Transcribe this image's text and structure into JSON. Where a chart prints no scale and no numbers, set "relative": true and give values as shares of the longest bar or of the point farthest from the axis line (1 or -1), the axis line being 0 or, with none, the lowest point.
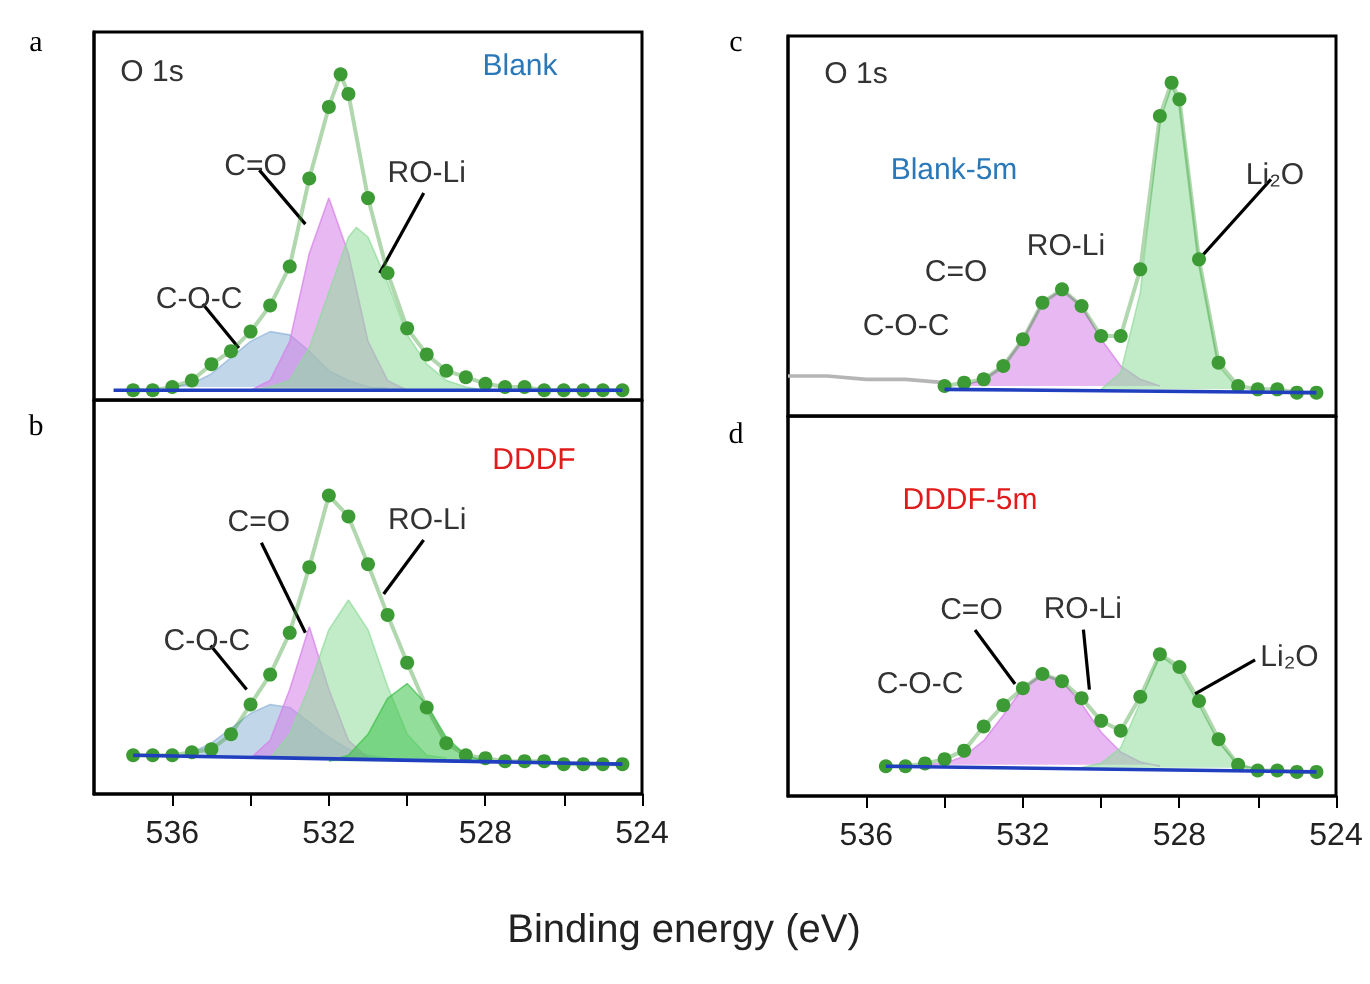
{
  "chart_data": [
    {
      "type": "line",
      "title": "Blank",
      "xlim": [
        538,
        524
      ],
      "tick_labels": false,
      "relative": true,
      "annotations": [
        "a",
        "O 1s",
        {
          "text": "C-O-C",
          "x": 534.3,
          "y": 0.16
        },
        {
          "text": "C=O",
          "x": 532.6,
          "y": 0.54
        },
        {
          "text": "RO-Li",
          "x": 530.7,
          "y": 0.39
        }
      ],
      "series": [
        {
          "type": "area",
          "color": "#8fb4d9",
          "x": [
            536,
            535.5,
            535,
            534.5,
            534,
            533.5,
            533,
            532.5,
            532,
            531.5,
            531,
            530.5
          ],
          "values": [
            0.04,
            0.05,
            0.08,
            0.13,
            0.18,
            0.21,
            0.2,
            0.15,
            0.09,
            0.06,
            0.04,
            0.03
          ]
        },
        {
          "type": "area",
          "color": "#d67ee8",
          "x": [
            534,
            533.5,
            533,
            532.5,
            532,
            531.5,
            531,
            530.5,
            530
          ],
          "values": [
            0.03,
            0.06,
            0.18,
            0.45,
            0.62,
            0.45,
            0.18,
            0.06,
            0.03
          ]
        },
        {
          "type": "area",
          "color": "#8fdc9a",
          "x": [
            534,
            533.5,
            533,
            532.5,
            532,
            531.5,
            531.3,
            531,
            530.5,
            530,
            529.5,
            529,
            528.5,
            528
          ],
          "values": [
            0.03,
            0.04,
            0.06,
            0.16,
            0.33,
            0.5,
            0.53,
            0.5,
            0.36,
            0.2,
            0.11,
            0.06,
            0.04,
            0.03
          ]
        },
        {
          "type": "line",
          "color": "#3d9b35",
          "marker": "circle",
          "x": [
            537,
            536.5,
            536,
            535.5,
            535,
            534.5,
            534,
            533.5,
            533,
            532.5,
            532,
            531.7,
            531.5,
            531,
            530.5,
            530,
            529.5,
            529,
            528.5,
            528,
            527.5,
            527,
            526.5,
            526,
            525.5,
            525,
            524.5
          ],
          "values": [
            0.03,
            0.03,
            0.04,
            0.06,
            0.11,
            0.15,
            0.21,
            0.29,
            0.41,
            0.68,
            0.9,
            1.0,
            0.94,
            0.62,
            0.39,
            0.22,
            0.14,
            0.09,
            0.07,
            0.05,
            0.04,
            0.04,
            0.03,
            0.03,
            0.03,
            0.03,
            0.03
          ]
        },
        {
          "type": "line",
          "color": "#1f3fbf",
          "x": [
            537.5,
            524.5
          ],
          "values": [
            0.03,
            0.03
          ]
        }
      ]
    },
    {
      "type": "line",
      "title": "DDDF",
      "xlim": [
        538,
        524
      ],
      "xticks": [
        536,
        {
          "value": 534,
          "label": null
        },
        532,
        {
          "value": 530,
          "label": null
        },
        528,
        {
          "value": 526,
          "label": null
        },
        524
      ],
      "tick_labels": "x",
      "relative": true,
      "annotations": [
        "b",
        {
          "text": "C-O-C",
          "x": 534.1,
          "y": 0.35
        },
        {
          "text": "C=O",
          "x": 532.6,
          "y": 0.54
        },
        {
          "text": "RO-Li",
          "x": 530.6,
          "y": 0.67
        }
      ],
      "series": [
        {
          "type": "area",
          "color": "#8fb4d9",
          "x": [
            536,
            535.5,
            535,
            534.5,
            534,
            533.5,
            533,
            532.5,
            532,
            531.5,
            531,
            530.5
          ],
          "values": [
            0.12,
            0.14,
            0.17,
            0.22,
            0.27,
            0.3,
            0.29,
            0.24,
            0.19,
            0.15,
            0.13,
            0.12
          ]
        },
        {
          "type": "area",
          "color": "#d67ee8",
          "x": [
            534,
            533.5,
            533,
            532.5,
            532,
            531.5,
            531
          ],
          "values": [
            0.12,
            0.18,
            0.35,
            0.56,
            0.35,
            0.18,
            0.12
          ]
        },
        {
          "type": "area",
          "color": "#8fdc9a",
          "x": [
            533.5,
            533,
            532.5,
            532,
            531.5,
            531,
            530.5,
            530,
            529.5,
            529
          ],
          "values": [
            0.12,
            0.2,
            0.36,
            0.55,
            0.65,
            0.55,
            0.36,
            0.2,
            0.13,
            0.12
          ]
        },
        {
          "type": "area",
          "color": "#3cc24a",
          "x": [
            532,
            531.5,
            531,
            530.5,
            530,
            529.5,
            529,
            528.5,
            528
          ],
          "values": [
            0.11,
            0.13,
            0.2,
            0.32,
            0.37,
            0.3,
            0.19,
            0.13,
            0.11
          ]
        },
        {
          "type": "line",
          "color": "#3d9b35",
          "marker": "circle",
          "x": [
            537,
            536.5,
            536,
            535.5,
            535,
            534.5,
            534,
            533.5,
            533,
            532.5,
            532,
            531.5,
            531,
            530.5,
            530,
            529.5,
            529,
            528.5,
            528,
            527.5,
            527,
            526.5,
            526,
            525.5,
            525,
            524.5
          ],
          "values": [
            0.13,
            0.13,
            0.13,
            0.14,
            0.15,
            0.2,
            0.3,
            0.4,
            0.54,
            0.76,
            1.0,
            0.93,
            0.77,
            0.6,
            0.44,
            0.29,
            0.17,
            0.13,
            0.12,
            0.11,
            0.11,
            0.11,
            0.1,
            0.1,
            0.1,
            0.1
          ]
        },
        {
          "type": "line",
          "color": "#1f3fbf",
          "x": [
            537,
            524.5
          ],
          "values": [
            0.13,
            0.1
          ]
        }
      ]
    },
    {
      "type": "line",
      "title": "Blank-5m",
      "xlim": [
        538,
        524
      ],
      "tick_labels": false,
      "relative": true,
      "annotations": [
        "c",
        "O 1s",
        "C=O",
        "RO-Li",
        "C-O-C",
        {
          "text": "Li₂O",
          "x": 527.5,
          "y": 0.47
        }
      ],
      "series": [
        {
          "type": "area",
          "color": "#d67ee8",
          "x": [
            533.5,
            533,
            532.5,
            532,
            531.5,
            531,
            530.5,
            530,
            529.5,
            529,
            528.5
          ],
          "values": [
            0.09,
            0.11,
            0.15,
            0.23,
            0.34,
            0.38,
            0.33,
            0.23,
            0.15,
            0.11,
            0.09
          ]
        },
        {
          "type": "area",
          "color": "#8fdc9a",
          "x": [
            530,
            529.5,
            529,
            528.5,
            528.2,
            528,
            527.5,
            527,
            526.5
          ],
          "values": [
            0.08,
            0.13,
            0.37,
            0.88,
            0.99,
            0.94,
            0.46,
            0.15,
            0.08
          ]
        },
        {
          "type": "line",
          "color": "#b5b5b5",
          "x": [
            538,
            537,
            536,
            535,
            534
          ],
          "values": [
            0.12,
            0.12,
            0.11,
            0.11,
            0.1
          ]
        },
        {
          "type": "line",
          "color": "#3d9b35",
          "marker": "circle",
          "x": [
            534,
            533.5,
            533,
            532.5,
            532,
            531.5,
            531,
            530.5,
            530,
            529.5,
            529,
            528.5,
            528.2,
            528,
            527.5,
            527,
            526.5,
            526,
            525.5,
            525,
            524.5
          ],
          "values": [
            0.09,
            0.1,
            0.11,
            0.15,
            0.23,
            0.34,
            0.38,
            0.33,
            0.24,
            0.24,
            0.44,
            0.9,
            1.0,
            0.95,
            0.47,
            0.16,
            0.09,
            0.08,
            0.08,
            0.07,
            0.07
          ]
        },
        {
          "type": "line",
          "color": "#1f3fbf",
          "x": [
            534,
            524.5
          ],
          "values": [
            0.08,
            0.07
          ]
        }
      ]
    },
    {
      "type": "line",
      "title": "DDDF-5m",
      "xlabel": "Binding energy (eV)",
      "xlim": [
        538,
        524
      ],
      "xticks": [
        536,
        {
          "value": 534,
          "label": null
        },
        532,
        {
          "value": 530,
          "label": null
        },
        528,
        {
          "value": 526,
          "label": null
        },
        524
      ],
      "tick_labels": "x",
      "relative": true,
      "annotations": [
        "d",
        "C-O-C",
        {
          "text": "C=O",
          "x": 532.2,
          "y": 0.79
        },
        {
          "text": "RO-Li",
          "x": 530.3,
          "y": 0.75
        },
        {
          "text": "Li₂O",
          "x": 527.6,
          "y": 0.72
        }
      ],
      "series": [
        {
          "type": "area",
          "color": "#d67ee8",
          "x": [
            534.5,
            534,
            533.5,
            533,
            532.5,
            532,
            531.5,
            531,
            530.5,
            530,
            529.5,
            529,
            528.5
          ],
          "values": [
            0.22,
            0.23,
            0.28,
            0.39,
            0.57,
            0.76,
            0.86,
            0.81,
            0.65,
            0.45,
            0.31,
            0.24,
            0.21
          ]
        },
        {
          "type": "area",
          "color": "#8fdc9a",
          "x": [
            530.5,
            530,
            529.5,
            529,
            528.5,
            528,
            527.5,
            527,
            526.5,
            526
          ],
          "values": [
            0.2,
            0.23,
            0.34,
            0.66,
            1.0,
            0.88,
            0.64,
            0.38,
            0.22,
            0.19
          ]
        },
        {
          "type": "line",
          "color": "#3d9b35",
          "marker": "circle",
          "x": [
            535.5,
            535,
            534.5,
            534,
            533.5,
            533,
            532.5,
            532,
            531.5,
            531,
            530.5,
            530,
            529.5,
            529,
            528.5,
            528,
            527.5,
            527,
            526.5,
            526,
            525.5,
            525,
            524.5
          ],
          "values": [
            0.21,
            0.21,
            0.23,
            0.26,
            0.32,
            0.49,
            0.64,
            0.76,
            0.86,
            0.81,
            0.69,
            0.53,
            0.46,
            0.7,
            1.0,
            0.91,
            0.67,
            0.4,
            0.22,
            0.18,
            0.18,
            0.17,
            0.17
          ]
        },
        {
          "type": "line",
          "color": "#1f3fbf",
          "x": [
            535.5,
            524.5
          ],
          "values": [
            0.21,
            0.17
          ]
        }
      ]
    }
  ]
}
